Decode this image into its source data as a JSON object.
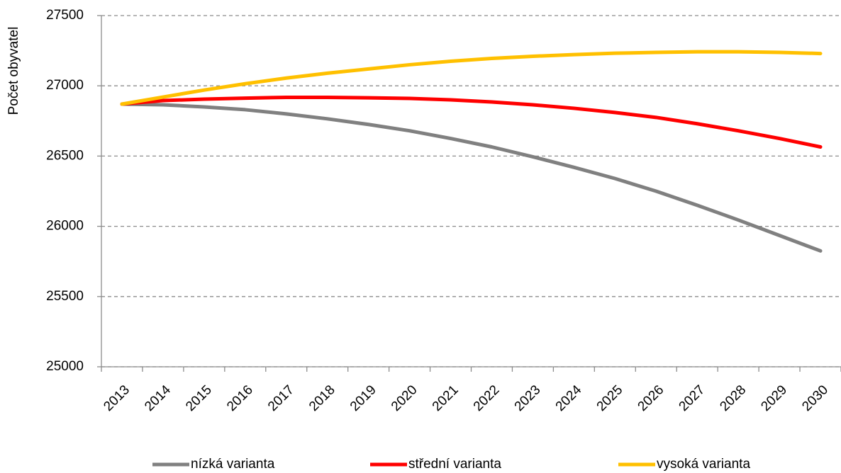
{
  "chart_data": {
    "type": "line",
    "y_label": "Počet obyvatel",
    "categories": [
      "2013",
      "2014",
      "2015",
      "2016",
      "2017",
      "2018",
      "2019",
      "2020",
      "2021",
      "2022",
      "2023",
      "2024",
      "2025",
      "2026",
      "2027",
      "2028",
      "2029",
      "2030"
    ],
    "series": [
      {
        "name": "nízká varianta",
        "color": "#808080",
        "values": [
          26870,
          26865,
          26850,
          26830,
          26800,
          26765,
          26725,
          26680,
          26625,
          26565,
          26495,
          26420,
          26340,
          26250,
          26150,
          26045,
          25935,
          25825
        ]
      },
      {
        "name": "střední varianta",
        "color": "#ff0000",
        "values": [
          26870,
          26895,
          26905,
          26912,
          26918,
          26918,
          26915,
          26910,
          26900,
          26885,
          26865,
          26840,
          26810,
          26775,
          26730,
          26680,
          26625,
          26565
        ]
      },
      {
        "name": "vysoká varianta",
        "color": "#ffc000",
        "values": [
          26870,
          26920,
          26970,
          27015,
          27055,
          27090,
          27120,
          27150,
          27175,
          27195,
          27210,
          27222,
          27232,
          27238,
          27242,
          27242,
          27238,
          27230
        ]
      }
    ],
    "ylim": [
      25000,
      27500
    ],
    "yticks": [
      25000,
      25500,
      26000,
      26500,
      27000,
      27500
    ],
    "grid": true,
    "legend": "bottom"
  }
}
